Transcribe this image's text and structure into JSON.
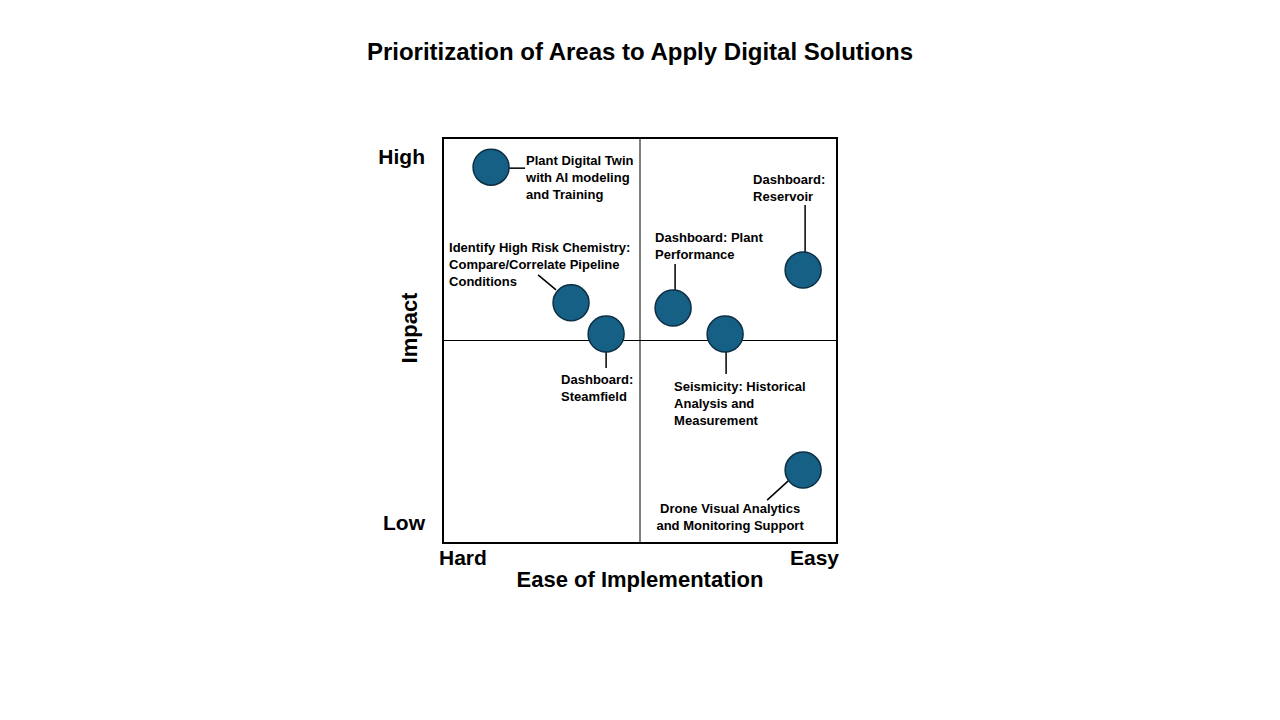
{
  "chart_data": {
    "type": "scatter",
    "title": "Prioritization of Areas to Apply Digital Solutions",
    "x_label": "Ease of Implementation",
    "y_label": "Impact",
    "xlim": [
      0,
      10
    ],
    "ylim": [
      0,
      10
    ],
    "xticks": [
      {
        "value": 0,
        "label": "Hard"
      },
      {
        "value": 10,
        "label": "Easy"
      }
    ],
    "yticks": [
      {
        "value": 0,
        "label": "Low"
      },
      {
        "value": 10,
        "label": "High"
      }
    ],
    "grid": false,
    "color": "#165f85",
    "points": [
      {
        "label": "Plant Digital Twin\nwith AI modeling\nand Training",
        "x": 1.22,
        "y": 9.28
      },
      {
        "label": "Identify High Risk Chemistry:\nCompare/Correlate Pipeline\nConditions",
        "x": 3.25,
        "y": 5.93
      },
      {
        "label": "Dashboard:\nSteamfield",
        "x": 4.14,
        "y": 5.16
      },
      {
        "label": "Dashboard: Plant\nPerformance",
        "x": 5.84,
        "y": 5.8
      },
      {
        "label": "Seismicity: Historical\nAnalysis and\nMeasurement",
        "x": 7.16,
        "y": 5.16
      },
      {
        "label": "Dashboard:\nReservoir",
        "x": 9.14,
        "y": 6.74
      },
      {
        "label": "Drone Visual Analytics\nand Monitoring Support",
        "x": 9.14,
        "y": 1.8
      }
    ]
  }
}
